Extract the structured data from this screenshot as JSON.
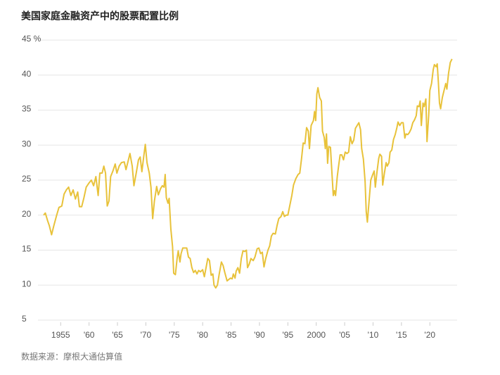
{
  "chart_data": {
    "type": "line",
    "title": "美国家庭金融资产中的股票配置比例",
    "source": "数据来源：摩根大通估算值",
    "color": "#e8c23a",
    "grid": true,
    "xlim": [
      1951.5,
      2024.8
    ],
    "ylim": [
      5,
      45
    ],
    "xticks": [
      {
        "value": 1955,
        "label": "1955"
      },
      {
        "value": 1960,
        "label": "'60"
      },
      {
        "value": 1965,
        "label": "'65"
      },
      {
        "value": 1970,
        "label": "'70"
      },
      {
        "value": 1975,
        "label": "'75"
      },
      {
        "value": 1980,
        "label": "'80"
      },
      {
        "value": 1985,
        "label": "'85"
      },
      {
        "value": 1990,
        "label": "'90"
      },
      {
        "value": 1995,
        "label": "'95"
      },
      {
        "value": 2000,
        "label": "2000"
      },
      {
        "value": 2005,
        "label": "'05"
      },
      {
        "value": 2010,
        "label": "'10"
      },
      {
        "value": 2015,
        "label": "'15"
      },
      {
        "value": 2020,
        "label": "'20"
      }
    ],
    "yticks": [
      5,
      10,
      15,
      20,
      25,
      30,
      35,
      40,
      {
        "value": 45,
        "label": "45 %"
      }
    ],
    "x": [
      1952.0,
      1952.3,
      1952.7,
      1953.0,
      1953.4,
      1953.8,
      1954.3,
      1954.7,
      1955.2,
      1955.6,
      1956.0,
      1956.4,
      1956.8,
      1957.2,
      1957.6,
      1958.0,
      1958.3,
      1958.7,
      1959.1,
      1959.5,
      1960.0,
      1960.4,
      1960.8,
      1961.2,
      1961.6,
      1961.9,
      1962.3,
      1962.6,
      1962.9,
      1963.2,
      1963.5,
      1963.8,
      1964.2,
      1964.6,
      1964.9,
      1965.3,
      1965.7,
      1966.2,
      1966.5,
      1966.9,
      1967.2,
      1967.6,
      1967.9,
      1968.3,
      1968.7,
      1969.0,
      1969.3,
      1969.6,
      1969.9,
      1970.2,
      1970.6,
      1970.9,
      1971.2,
      1971.5,
      1971.9,
      1972.2,
      1972.6,
      1972.9,
      1973.2,
      1973.4,
      1973.6,
      1973.9,
      1974.1,
      1974.4,
      1974.7,
      1974.9,
      1975.2,
      1975.5,
      1975.7,
      1976.0,
      1976.2,
      1976.5,
      1976.8,
      1977.2,
      1977.5,
      1977.8,
      1978.1,
      1978.4,
      1978.7,
      1979.0,
      1979.3,
      1979.6,
      1980.0,
      1980.3,
      1980.6,
      1980.9,
      1981.2,
      1981.5,
      1981.8,
      1982.0,
      1982.3,
      1982.6,
      1982.9,
      1983.3,
      1983.6,
      1983.9,
      1984.3,
      1984.6,
      1984.9,
      1985.2,
      1985.4,
      1985.7,
      1985.9,
      1986.2,
      1986.5,
      1986.8,
      1987.1,
      1987.4,
      1987.7,
      1987.9,
      1988.2,
      1988.5,
      1988.9,
      1989.2,
      1989.6,
      1989.9,
      1990.2,
      1990.5,
      1990.8,
      1991.1,
      1991.5,
      1991.8,
      1992.1,
      1992.4,
      1992.8,
      1993.1,
      1993.4,
      1993.8,
      1994.1,
      1994.4,
      1994.7,
      1995.0,
      1995.3,
      1995.7,
      1996.0,
      1996.4,
      1996.8,
      1997.1,
      1997.4,
      1997.7,
      1998.0,
      1998.3,
      1998.6,
      1998.8,
      1999.1,
      1999.5,
      1999.7,
      1999.9,
      2000.1,
      2000.3,
      2000.6,
      2000.9,
      2001.1,
      2001.4,
      2001.6,
      2001.8,
      2002.0,
      2002.2,
      2002.5,
      2002.8,
      2003.0,
      2003.2,
      2003.4,
      2003.7,
      2003.9,
      2004.2,
      2004.5,
      2004.8,
      2005.1,
      2005.4,
      2005.7,
      2006.0,
      2006.3,
      2006.6,
      2006.9,
      2007.2,
      2007.5,
      2007.8,
      2008.0,
      2008.3,
      2008.6,
      2008.8,
      2009.0,
      2009.3,
      2009.6,
      2009.9,
      2010.2,
      2010.4,
      2010.7,
      2011.0,
      2011.2,
      2011.5,
      2011.7,
      2012.0,
      2012.3,
      2012.5,
      2012.8,
      2013.0,
      2013.3,
      2013.6,
      2013.9,
      2014.2,
      2014.4,
      2014.7,
      2015.0,
      2015.3,
      2015.6,
      2015.8,
      2016.1,
      2016.4,
      2016.7,
      2017.0,
      2017.3,
      2017.6,
      2017.8,
      2018.1,
      2018.3,
      2018.5,
      2018.8,
      2019.0,
      2019.3,
      2019.5,
      2019.8,
      2020.0,
      2020.3,
      2020.6,
      2020.8,
      2021.1,
      2021.3,
      2021.5,
      2021.7,
      2021.9,
      2022.2,
      2022.5,
      2022.8,
      2023.0,
      2023.3,
      2023.6,
      2023.9
    ],
    "values": [
      20.0,
      20.3,
      19.2,
      18.5,
      17.2,
      18.5,
      20.0,
      21.1,
      21.3,
      23.0,
      23.6,
      24.0,
      22.8,
      23.6,
      22.3,
      23.3,
      21.2,
      21.2,
      22.5,
      24.0,
      24.6,
      25.0,
      24.2,
      25.5,
      22.8,
      26.0,
      26.0,
      27.0,
      26.0,
      21.3,
      22.0,
      25.5,
      26.3,
      27.3,
      26.0,
      27.0,
      27.5,
      27.6,
      26.5,
      27.8,
      28.8,
      27.0,
      24.2,
      26.0,
      27.9,
      28.3,
      26.2,
      28.2,
      30.1,
      27.5,
      26.0,
      24.0,
      19.5,
      22.0,
      24.1,
      22.9,
      23.8,
      24.2,
      24.0,
      25.8,
      22.5,
      21.7,
      22.4,
      18.0,
      15.5,
      11.7,
      11.5,
      13.8,
      14.9,
      13.3,
      14.5,
      15.3,
      15.3,
      15.3,
      14.0,
      13.8,
      12.5,
      11.8,
      12.1,
      11.6,
      12.1,
      11.9,
      12.2,
      11.2,
      12.5,
      13.8,
      13.5,
      11.4,
      11.6,
      10.0,
      9.6,
      10.0,
      11.5,
      13.3,
      12.8,
      11.8,
      10.6,
      10.8,
      11.0,
      10.9,
      11.6,
      11.0,
      12.0,
      12.5,
      11.7,
      13.8,
      14.9,
      14.8,
      15.0,
      12.5,
      13.0,
      13.8,
      13.5,
      14.0,
      15.2,
      15.3,
      14.5,
      14.7,
      12.6,
      13.8,
      15.0,
      15.6,
      17.0,
      17.4,
      17.3,
      18.5,
      19.5,
      19.8,
      20.5,
      19.8,
      20.0,
      20.0,
      21.2,
      22.8,
      24.3,
      25.2,
      25.8,
      26.0,
      28.0,
      30.3,
      30.2,
      32.5,
      32.0,
      29.5,
      32.8,
      33.5,
      34.8,
      33.5,
      37.3,
      38.2,
      36.8,
      36.3,
      32.0,
      31.1,
      29.5,
      31.6,
      27.4,
      29.8,
      29.7,
      25.5,
      22.8,
      23.5,
      22.8,
      25.5,
      26.8,
      28.6,
      28.6,
      27.9,
      29.0,
      28.8,
      29.0,
      31.2,
      30.2,
      30.7,
      32.4,
      32.8,
      33.2,
      32.2,
      29.5,
      28.0,
      24.8,
      20.5,
      19.0,
      22.0,
      25.0,
      25.7,
      26.3,
      24.0,
      26.2,
      28.1,
      28.7,
      28.4,
      24.3,
      26.0,
      27.5,
      27.0,
      27.5,
      29.0,
      29.3,
      30.8,
      31.5,
      32.5,
      33.3,
      32.8,
      33.2,
      33.2,
      31.0,
      31.6,
      31.5,
      31.8,
      32.3,
      33.2,
      33.6,
      34.2,
      35.6,
      35.5,
      36.3,
      32.8,
      36.0,
      35.5,
      36.6,
      30.5,
      34.3,
      37.8,
      38.8,
      40.8,
      41.5,
      41.2,
      41.6,
      39.0,
      36.0,
      35.2,
      36.8,
      37.8,
      38.8,
      38.0,
      40.3,
      41.8,
      42.3
    ]
  }
}
